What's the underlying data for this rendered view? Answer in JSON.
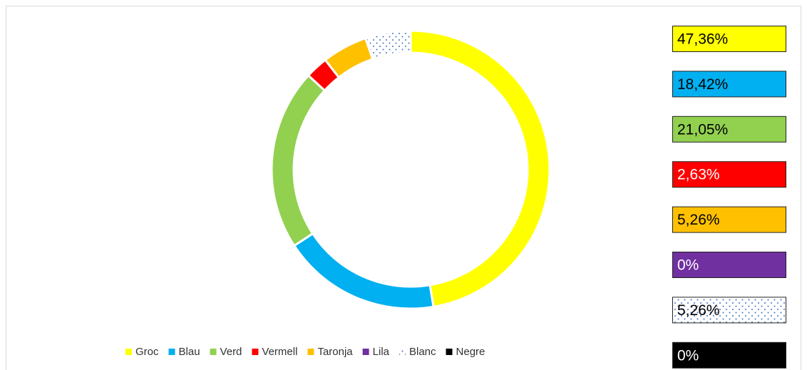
{
  "chart_data": {
    "type": "donut",
    "categories": [
      "Groc",
      "Blau",
      "Verd",
      "Vermell",
      "Taronja",
      "Lila",
      "Blanc",
      "Negre"
    ],
    "values": [
      47.36,
      18.42,
      21.05,
      2.63,
      5.26,
      0,
      5.26,
      0
    ],
    "value_labels": [
      "47,36%",
      "18,42%",
      "21,05%",
      "2,63%",
      "5,26%",
      "0%",
      "5,26%",
      "0%"
    ],
    "colors": [
      "#ffff00",
      "#00b0f0",
      "#92d050",
      "#ff0000",
      "#ffc000",
      "#7030a0",
      "#ffffff",
      "#000000"
    ],
    "legend": "bottom"
  }
}
